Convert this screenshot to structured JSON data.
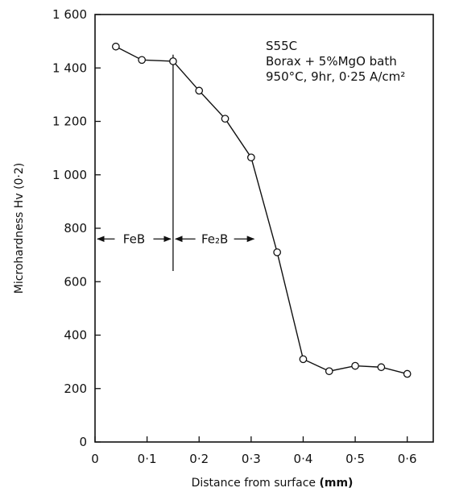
{
  "chart_data": {
    "type": "line",
    "xlabel": "Distance from surface",
    "xunit": "(mm)",
    "ylabel": "Microhardness Hv (0·2)",
    "xlim": [
      0,
      0.65
    ],
    "ylim": [
      0,
      1600
    ],
    "xticks": [
      0,
      0.1,
      0.2,
      0.3,
      0.4,
      0.5,
      0.6
    ],
    "xtick_labels": [
      "0",
      "0·1",
      "0·2",
      "0·3",
      "0·4",
      "0·5",
      "0·6"
    ],
    "yticks": [
      0,
      200,
      400,
      600,
      800,
      1000,
      1200,
      1400,
      1600
    ],
    "ytick_labels": [
      "0",
      "200",
      "400",
      "600",
      "800",
      "1 000",
      "1 200",
      "1 400",
      "1 600"
    ],
    "grid": false,
    "annotation_lines": [
      "S55C",
      "Borax + 5%MgO  bath",
      "950°C, 9hr, 0·25 A/cm²"
    ],
    "regions": [
      {
        "label": "FeB",
        "x_start": 0,
        "x_end": 0.15
      },
      {
        "label": "Fe₂B",
        "x_start": 0.15,
        "x_end": 0.31
      }
    ],
    "region_arrow_y": 760,
    "region_boundary_x": 0.15,
    "series": [
      {
        "x": [
          0.04,
          0.09,
          0.15,
          0.2,
          0.25,
          0.3,
          0.35,
          0.4,
          0.45,
          0.5,
          0.55,
          0.6
        ],
        "y": [
          1480,
          1430,
          1425,
          1315,
          1210,
          1065,
          710,
          310,
          265,
          285,
          280,
          255
        ]
      }
    ]
  }
}
